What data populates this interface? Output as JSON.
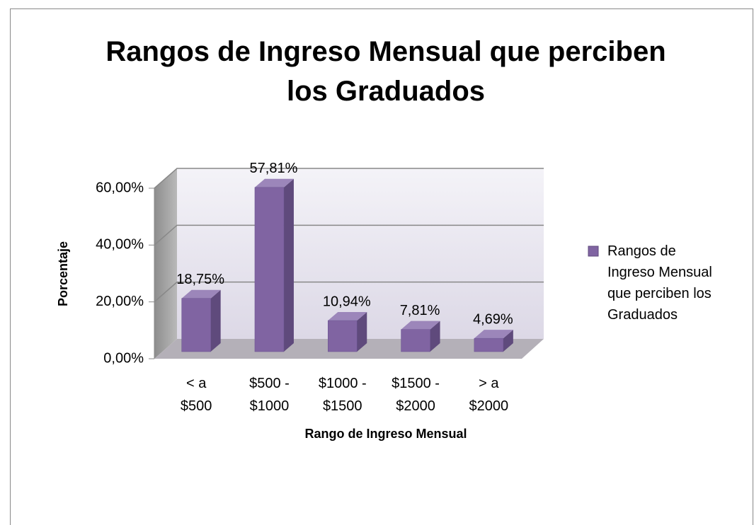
{
  "chart_data": {
    "type": "bar3d",
    "title": "Rangos de Ingreso Mensual que perciben\nlos Graduados",
    "categories": [
      "<   a\n$500",
      "$500 -\n$1000",
      "$1000 -\n$1500",
      "$1500 -\n$2000",
      ">   a\n$2000"
    ],
    "series": [
      {
        "name": "Rangos de\nIngreso Mensual\nque perciben los\nGraduados",
        "color": "#8064a2",
        "values": [
          18.75,
          57.81,
          10.94,
          7.81,
          4.69
        ],
        "value_labels": [
          "18,75%",
          "57,81%",
          "10,94%",
          "7,81%",
          "4,69%"
        ]
      }
    ],
    "xlabel": "Rango de Ingreso Mensual",
    "ylabel": "Porcentaje",
    "ylim": [
      0,
      60
    ],
    "yticks": [
      {
        "value": 0,
        "label": "0,00%"
      },
      {
        "value": 20,
        "label": "20,00%"
      },
      {
        "value": 40,
        "label": "40,00%"
      },
      {
        "value": 60,
        "label": "60,00%"
      }
    ],
    "grid": true,
    "legend": "right"
  }
}
